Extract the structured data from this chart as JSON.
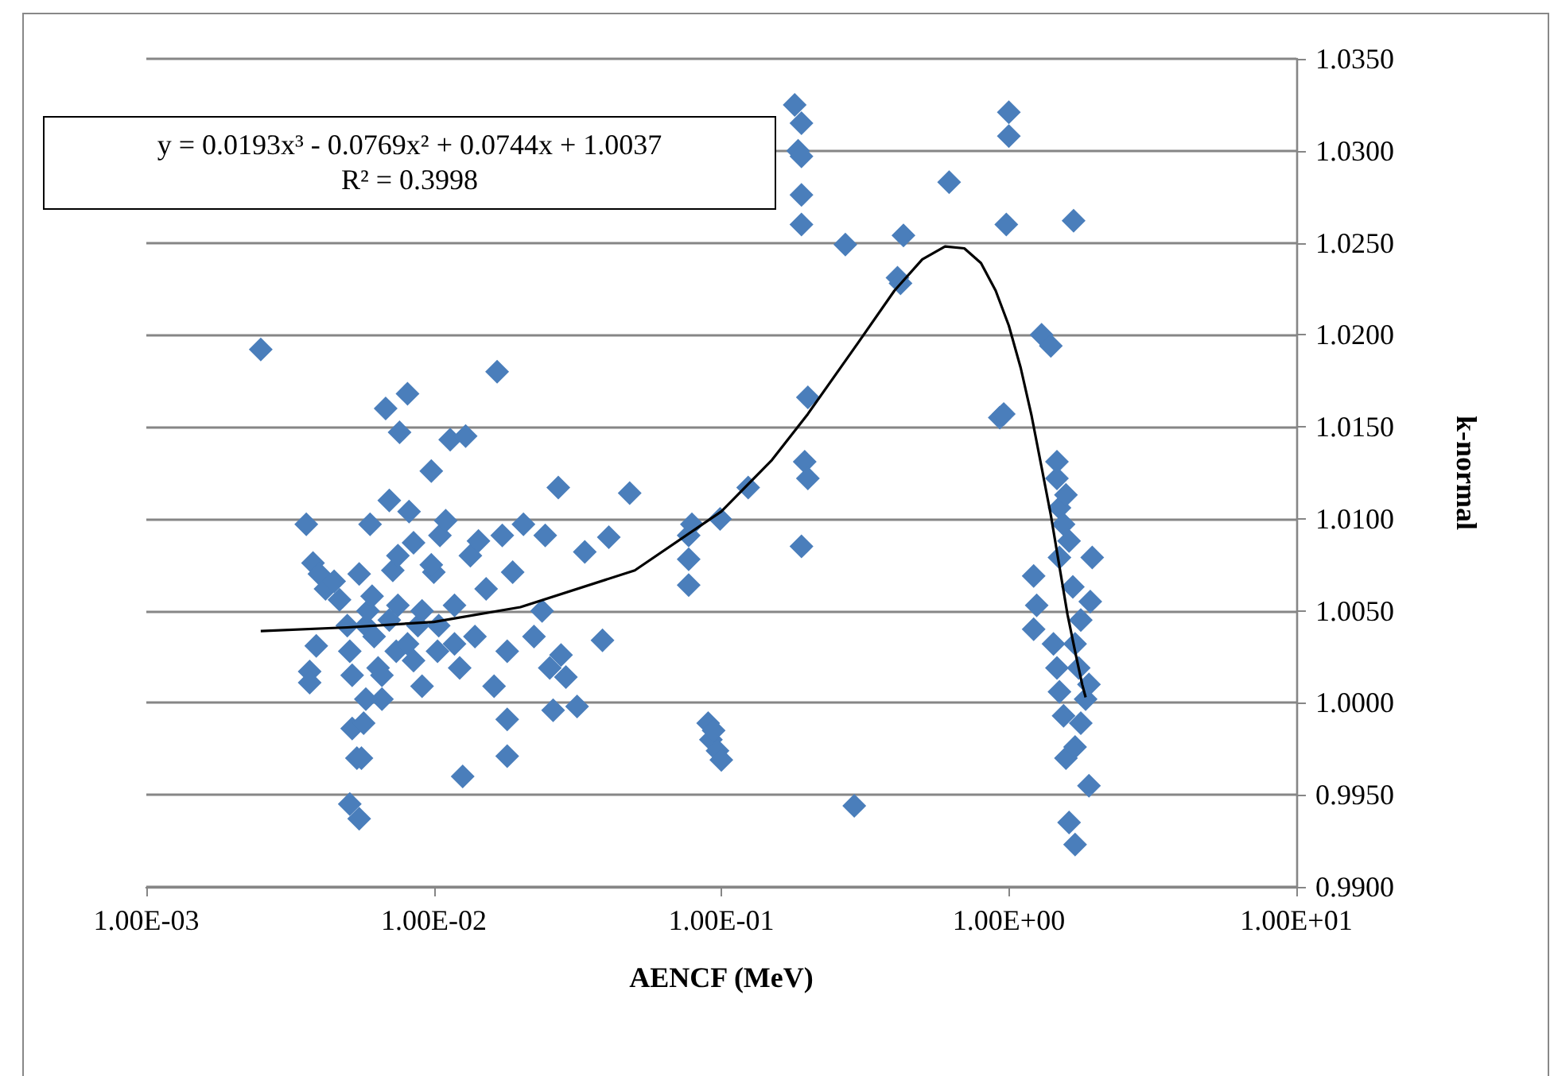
{
  "chart_data": {
    "type": "scatter",
    "xlabel": "AENCF (MeV)",
    "ylabel": "k-normal",
    "log": "x",
    "grid": "y",
    "marker": "diamond",
    "annotations": [
      "y = 0.0193x³ - 0.0769x² + 0.0744x + 1.0037",
      "R² = 0.3998"
    ],
    "xlim": [
      0.001,
      10
    ],
    "xticks": [
      {
        "value": 0.001,
        "label": "1.00E-03"
      },
      {
        "value": 0.01,
        "label": "1.00E-02"
      },
      {
        "value": 0.1,
        "label": "1.00E-01"
      },
      {
        "value": 1,
        "label": "1.00E+00"
      },
      {
        "value": 10,
        "label": "1.00E+01"
      }
    ],
    "ylim": [
      0.99,
      1.035
    ],
    "yticks": [
      {
        "value": 0.99,
        "label": "0.9900"
      },
      {
        "value": 0.995,
        "label": "0.9950"
      },
      {
        "value": 1,
        "label": "1.0000"
      },
      {
        "value": 1.005,
        "label": "1.0050"
      },
      {
        "value": 1.01,
        "label": "1.0100"
      },
      {
        "value": 1.015,
        "label": "1.0150"
      },
      {
        "value": 1.02,
        "label": "1.0200"
      },
      {
        "value": 1.025,
        "label": "1.0250"
      },
      {
        "value": 1.03,
        "label": "1.0300"
      },
      {
        "value": 1.035,
        "label": "1.0350"
      }
    ],
    "series": [
      {
        "color": "#4a7ebb",
        "x": [
          0.0025,
          0.0036,
          0.0038,
          0.004,
          0.0042,
          0.0037,
          0.0037,
          0.0039,
          0.0045,
          0.0047,
          0.005,
          0.0051,
          0.0052,
          0.0052,
          0.0054,
          0.0051,
          0.0055,
          0.0056,
          0.0058,
          0.0059,
          0.006,
          0.0062,
          0.0064,
          0.0066,
          0.0068,
          0.007,
          0.0072,
          0.0074,
          0.0076,
          0.0075,
          0.0081,
          0.0082,
          0.0085,
          0.0088,
          0.0091,
          0.0098,
          0.01,
          0.0103,
          0.0105,
          0.011,
          0.0114,
          0.0118,
          0.0123,
          0.0126,
          0.0129,
          0.0134,
          0.0139,
          0.0143,
          0.0152,
          0.0162,
          0.0166,
          0.0173,
          0.018,
          0.018,
          0.018,
          0.0188,
          0.0205,
          0.0223,
          0.0238,
          0.0244,
          0.0253,
          0.026,
          0.0271,
          0.0277,
          0.0288,
          0.0315,
          0.0335,
          0.0386,
          0.0406,
          0.048,
          0.0055,
          0.0061,
          0.007,
          0.0081,
          0.0091,
          0.0104,
          0.0118,
          0.0085,
          0.0066,
          0.0058,
          0.0057,
          0.0075,
          0.0098,
          0.077,
          0.077,
          0.077,
          0.079,
          0.099,
          0.124,
          0.19,
          0.2,
          0.195,
          0.2,
          0.09,
          0.092,
          0.097,
          0.1,
          0.094,
          0.29,
          0.18,
          0.19,
          0.185,
          0.19,
          0.19,
          0.19,
          0.27,
          0.43,
          0.41,
          0.42,
          0.62,
          1.0,
          1.0,
          0.98,
          1.68,
          1.3,
          1.4,
          0.93,
          0.96,
          1.47,
          1.47,
          1.5,
          1.55,
          1.5,
          1.22,
          1.25,
          1.22,
          1.43,
          1.47,
          1.5,
          1.55,
          1.58,
          1.62,
          1.7,
          1.9,
          1.7,
          1.78,
          1.85,
          1.9,
          1.95,
          1.92,
          1.78,
          1.7,
          1.67,
          1.62,
          1.58,
          1.75
        ],
        "values": [
          1.0192,
          1.0097,
          1.0076,
          1.007,
          1.0062,
          1.0017,
          1.0011,
          1.0031,
          1.0066,
          1.0056,
          1.0042,
          1.0028,
          1.0015,
          0.9986,
          0.997,
          0.9945,
          0.9937,
          0.997,
          1.0042,
          1.005,
          1.0097,
          1.0036,
          1.0019,
          1.0002,
          1.016,
          1.011,
          1.0072,
          1.0028,
          1.0147,
          1.0053,
          1.0168,
          1.0104,
          1.0087,
          1.0042,
          1.0009,
          1.0126,
          1.0071,
          1.0028,
          1.0091,
          1.0099,
          1.0143,
          1.0053,
          1.0019,
          0.996,
          1.0145,
          1.008,
          1.0036,
          1.0088,
          1.0062,
          1.0009,
          1.018,
          1.0091,
          1.0028,
          0.9991,
          0.9971,
          1.0071,
          1.0097,
          1.0036,
          1.005,
          1.0091,
          1.0019,
          0.9996,
          1.0117,
          1.0026,
          1.0014,
          0.9998,
          1.0082,
          1.0034,
          1.009,
          1.0114,
          1.007,
          1.0058,
          1.0045,
          1.0032,
          1.005,
          1.0042,
          1.0032,
          1.0023,
          1.0015,
          1.0002,
          0.9989,
          1.008,
          1.0075,
          1.0091,
          1.0078,
          1.0064,
          1.0097,
          1.01,
          1.0117,
          1.0085,
          1.0166,
          1.0131,
          1.0122,
          0.9989,
          0.998,
          0.9974,
          0.9969,
          0.9985,
          0.9944,
          1.0325,
          1.0315,
          1.03,
          1.0297,
          1.0276,
          1.026,
          1.0249,
          1.0254,
          1.0231,
          1.0228,
          1.0283,
          1.0308,
          1.0321,
          1.026,
          1.0262,
          1.02,
          1.0194,
          1.0155,
          1.0157,
          1.0131,
          1.0122,
          1.0106,
          1.0097,
          1.0079,
          1.0069,
          1.0053,
          1.004,
          1.0032,
          1.0019,
          1.0006,
          0.9993,
          0.997,
          0.9935,
          0.9923,
          0.9955,
          0.9976,
          0.9989,
          1.0002,
          1.001,
          1.0079,
          1.0055,
          1.0045,
          1.0032,
          1.0063,
          1.0088,
          1.0113,
          1.0019
        ]
      },
      {
        "type": "line",
        "color": "#000000",
        "marker": "none",
        "line_style": "solid",
        "x": [
          0.0025,
          0.005,
          0.01,
          0.02,
          0.05,
          0.1,
          0.15,
          0.2,
          0.3,
          0.4,
          0.5,
          0.6,
          0.7,
          0.8,
          0.9,
          1.0,
          1.1,
          1.2,
          1.3,
          1.4,
          1.5,
          1.6,
          1.7,
          1.8,
          1.85
        ],
        "values": [
          1.0039,
          1.0041,
          1.0044,
          1.0052,
          1.0072,
          1.0104,
          1.0132,
          1.0157,
          1.0196,
          1.0224,
          1.0241,
          1.0248,
          1.0247,
          1.0239,
          1.0224,
          1.0205,
          1.0182,
          1.0156,
          1.0128,
          1.0102,
          1.0074,
          1.0048,
          1.0028,
          1.001,
          1.0003
        ]
      }
    ]
  }
}
